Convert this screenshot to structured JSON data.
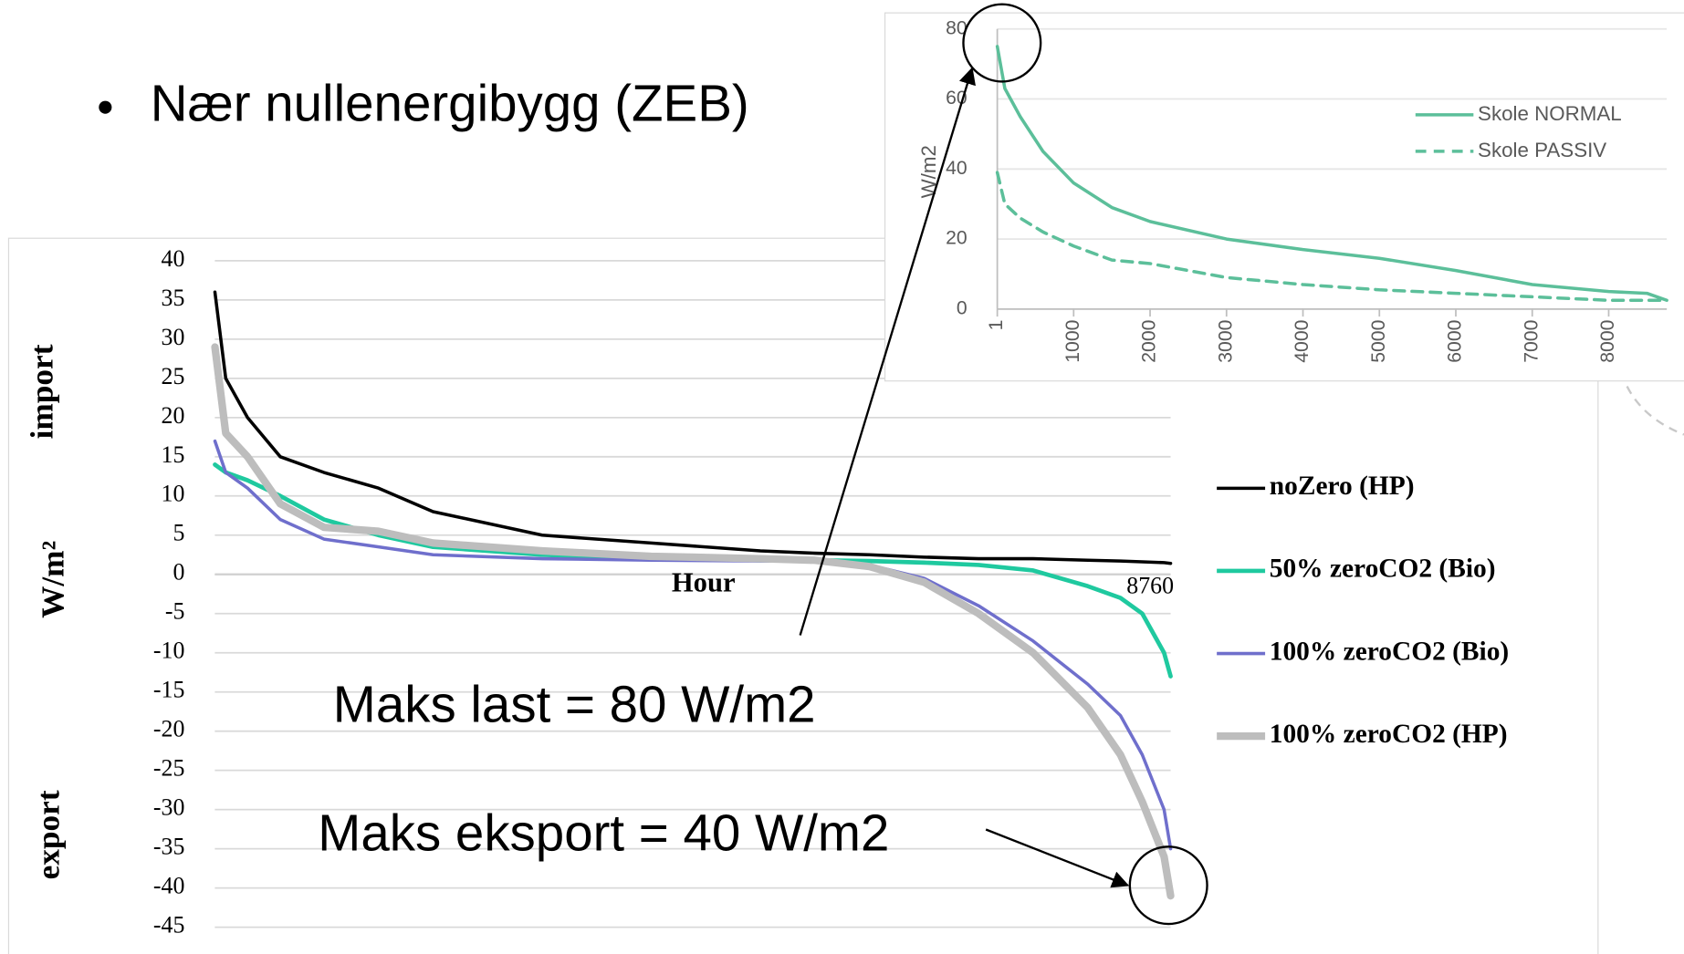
{
  "slide": {
    "bullet": "Nær nullenergibygg (ZEB)"
  },
  "chart_data": [
    {
      "type": "line",
      "xlabel": "Hour",
      "ylabel": "W/m²",
      "ylabel_top": "import",
      "ylabel_bottom": "export",
      "xlim": [
        0,
        8760
      ],
      "xticks": [
        8760
      ],
      "ylim": [
        -45,
        40
      ],
      "yticks": [
        -45,
        -40,
        -35,
        -30,
        -25,
        -20,
        -15,
        -10,
        -5,
        0,
        5,
        10,
        15,
        20,
        25,
        30,
        35,
        40
      ],
      "grid": true,
      "legend": "right",
      "annotations": [
        "Maks last = 80 W/m2",
        "Maks eksport = 40 W/m2"
      ],
      "x": [
        1,
        100,
        300,
        600,
        1000,
        1500,
        2000,
        3000,
        4000,
        5000,
        5500,
        6000,
        6500,
        7000,
        7500,
        8000,
        8300,
        8500,
        8700,
        8760
      ],
      "series": [
        {
          "name": "noZero (HP)",
          "color": "#000000",
          "width": 3,
          "values": [
            36,
            25,
            20,
            15,
            13,
            11,
            8,
            5,
            4,
            3,
            2.7,
            2.5,
            2.2,
            2,
            2,
            1.8,
            1.7,
            1.6,
            1.5,
            1.4
          ]
        },
        {
          "name": "50% zeroCO2 (Bio)",
          "color": "#1fc99f",
          "width": 4,
          "values": [
            14,
            13,
            12,
            10,
            7,
            5,
            3.5,
            2.5,
            2,
            1.8,
            1.8,
            1.7,
            1.5,
            1.2,
            0.5,
            -1.5,
            -3,
            -5,
            -10,
            -13
          ]
        },
        {
          "name": "100% zeroCO2 (Bio)",
          "color": "#6f6fcc",
          "width": 3,
          "values": [
            17,
            13,
            11,
            7,
            4.5,
            3.5,
            2.5,
            2,
            1.8,
            1.7,
            1.7,
            1.2,
            -0.5,
            -4,
            -8.5,
            -14,
            -18,
            -23,
            -30,
            -35
          ]
        },
        {
          "name": "100% zeroCO2 (HP)",
          "color": "#bdbdbd",
          "width": 7,
          "values": [
            29,
            18,
            15,
            9,
            6,
            5.5,
            4,
            3,
            2.3,
            2,
            1.8,
            1,
            -1,
            -5,
            -10,
            -17,
            -23,
            -29,
            -36,
            -41
          ]
        }
      ]
    },
    {
      "type": "line",
      "ylabel": "W/m2",
      "xlim": [
        1,
        8760
      ],
      "xticks": [
        1,
        1000,
        2000,
        3000,
        4000,
        5000,
        6000,
        7000,
        8000
      ],
      "ylim": [
        0,
        80
      ],
      "yticks": [
        0,
        20,
        40,
        60,
        80
      ],
      "grid": true,
      "legend": "upper right",
      "x": [
        1,
        100,
        300,
        600,
        1000,
        1500,
        2000,
        3000,
        4000,
        5000,
        6000,
        7000,
        8000,
        8500,
        8760
      ],
      "series": [
        {
          "name": "Skole NORMAL",
          "color": "#5cbf9a",
          "width": 3,
          "dash": "solid",
          "values": [
            75,
            63,
            55,
            45,
            36,
            29,
            25,
            20,
            17,
            14.5,
            11,
            7,
            5,
            4.5,
            2.5
          ]
        },
        {
          "name": "Skole PASSIV",
          "color": "#5cbf9a",
          "width": 3,
          "dash": "dashed",
          "values": [
            39,
            30,
            26,
            22,
            18,
            14,
            13,
            9,
            7,
            5.5,
            4.5,
            3.5,
            2.5,
            2.5,
            2.5
          ]
        }
      ]
    }
  ]
}
